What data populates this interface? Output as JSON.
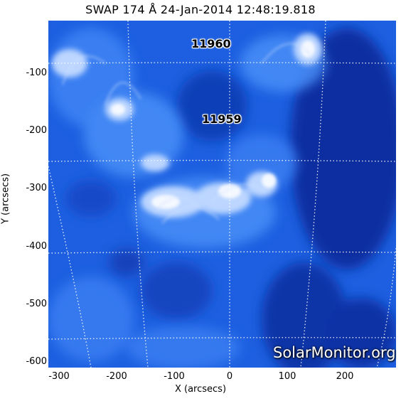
{
  "title": "SWAP 174 Å 24-Jan-2014 12:48:19.818",
  "xlabel": "X (arcsecs)",
  "ylabel": "Y (arcsecs)",
  "x_ticks": [
    "-300",
    "-200",
    "-100",
    "0",
    "100",
    "200"
  ],
  "y_ticks": [
    "-100",
    "-200",
    "-300",
    "-400",
    "-500",
    "-600"
  ],
  "active_regions": [
    {
      "label": "11960"
    },
    {
      "label": "11959"
    }
  ],
  "watermark": "SolarMonitor.org",
  "colors": {
    "background": "#ffffff",
    "sun_dark": "#0a2a9a",
    "sun_mid": "#1a5ae0",
    "sun_bright": "#e8f0ff",
    "grid": "#ffffff"
  }
}
